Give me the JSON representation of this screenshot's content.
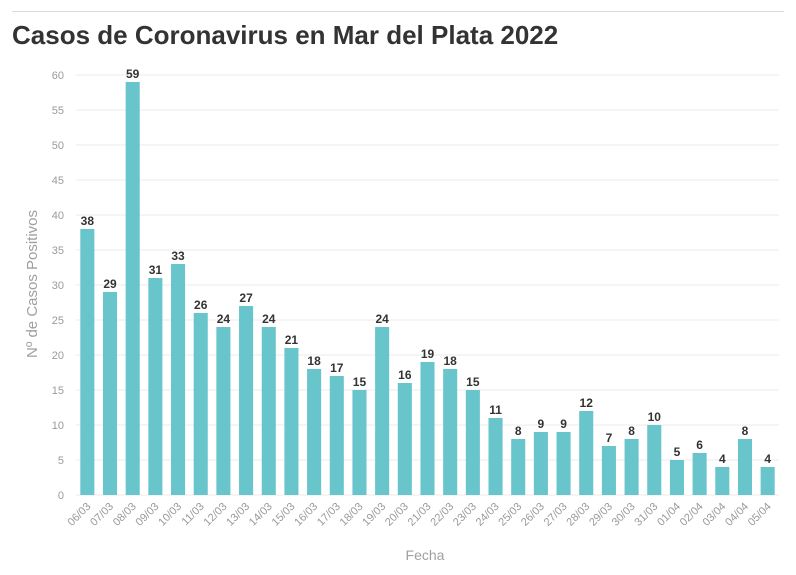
{
  "title": "Casos de Coronavirus en Mar del Plata 2022",
  "colors": {
    "bar": "#67c5cb",
    "grid": "#ebebeb",
    "text": "#333333",
    "axis_text": "#9a9a9a"
  },
  "chart_data": {
    "type": "bar",
    "title": "Casos de Coronavirus en Mar del Plata 2022",
    "xlabel": "Fecha",
    "ylabel": "Nº de Casos Positivos",
    "ylim": [
      0,
      60
    ],
    "yticks": [
      0,
      5,
      10,
      15,
      20,
      25,
      30,
      35,
      40,
      45,
      50,
      55,
      60
    ],
    "grid": true,
    "categories": [
      "06/03",
      "07/03",
      "08/03",
      "09/03",
      "10/03",
      "11/03",
      "12/03",
      "13/03",
      "14/03",
      "15/03",
      "16/03",
      "17/03",
      "18/03",
      "19/03",
      "20/03",
      "21/03",
      "22/03",
      "23/03",
      "24/03",
      "25/03",
      "26/03",
      "27/03",
      "28/03",
      "29/03",
      "30/03",
      "31/03",
      "01/04",
      "02/04",
      "03/04",
      "04/04",
      "05/04"
    ],
    "values": [
      38,
      29,
      59,
      31,
      33,
      26,
      24,
      27,
      24,
      21,
      18,
      17,
      15,
      24,
      16,
      19,
      18,
      15,
      11,
      8,
      9,
      9,
      12,
      7,
      8,
      10,
      5,
      6,
      4,
      8,
      4
    ]
  }
}
